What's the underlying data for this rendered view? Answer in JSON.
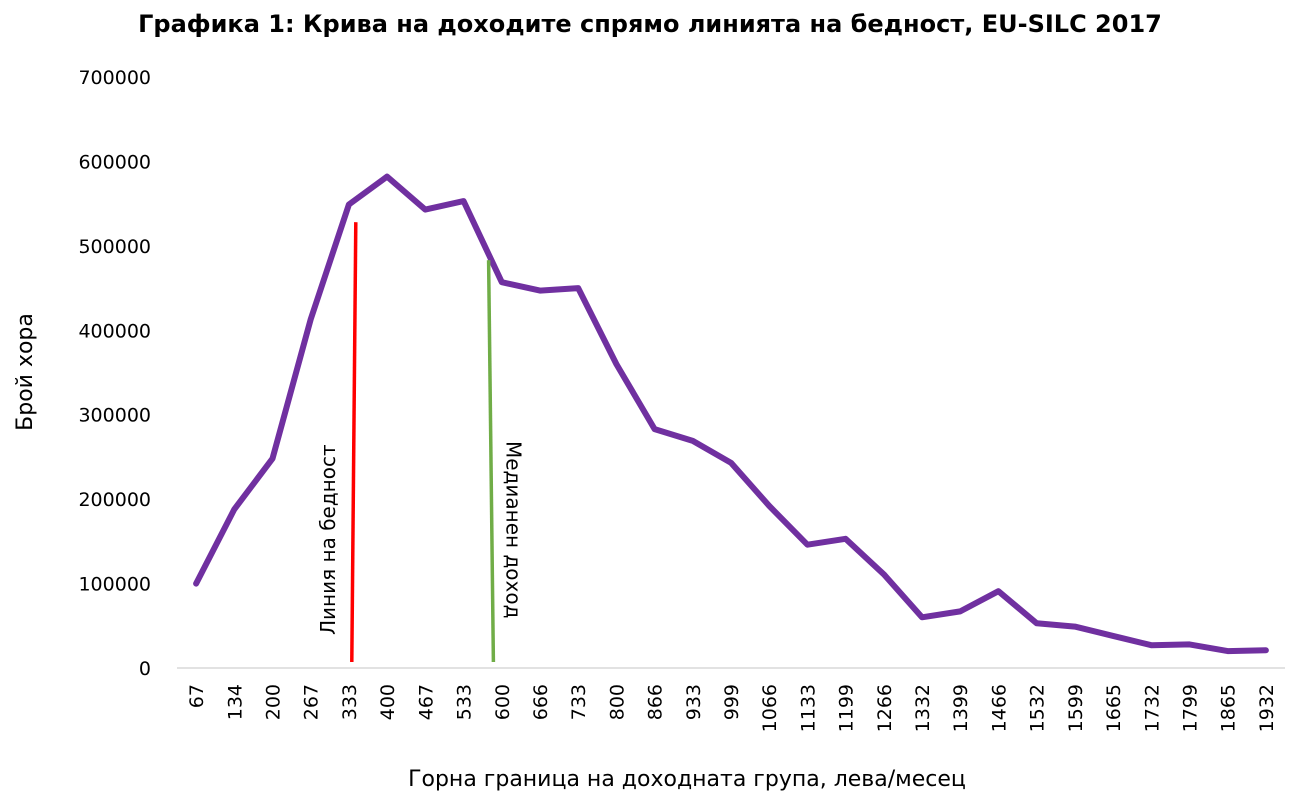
{
  "chart_data": {
    "type": "line",
    "title": "Графика 1: Крива на доходите спрямо линията на бедност, EU-SILC 2017",
    "xlabel": "Горна граница на доходната група, лева/месец",
    "ylabel": "Брой  хора",
    "ylim": [
      0,
      700000
    ],
    "yticks": [
      "0",
      "100000",
      "200000",
      "300000",
      "400000",
      "500000",
      "600000",
      "700000"
    ],
    "grid": false,
    "categories": [
      "67",
      "134",
      "200",
      "267",
      "333",
      "400",
      "467",
      "533",
      "600",
      "666",
      "733",
      "800",
      "866",
      "933",
      "999",
      "1066",
      "1133",
      "1199",
      "1266",
      "1332",
      "1399",
      "1466",
      "1532",
      "1599",
      "1665",
      "1732",
      "1799",
      "1865",
      "1932"
    ],
    "series": [
      {
        "color": "#7030a0",
        "values": [
          100000,
          188000,
          248000,
          413000,
          549000,
          582000,
          543000,
          553000,
          457000,
          447000,
          450000,
          360000,
          283000,
          269000,
          243000,
          192000,
          146000,
          153000,
          111000,
          60000,
          67000,
          91000,
          53000,
          49000,
          38000,
          27000,
          28000,
          20000,
          21000
        ]
      }
    ],
    "annotations": [
      {
        "label": "Линия на бедност",
        "color": "#ff0000",
        "x_start": 345,
        "x_end": 352,
        "y_top": 528000
      },
      {
        "label": "Медианен доход",
        "color": "#70ad47",
        "x_start": 577,
        "x_end": 580,
        "y_top": 483000
      }
    ]
  }
}
